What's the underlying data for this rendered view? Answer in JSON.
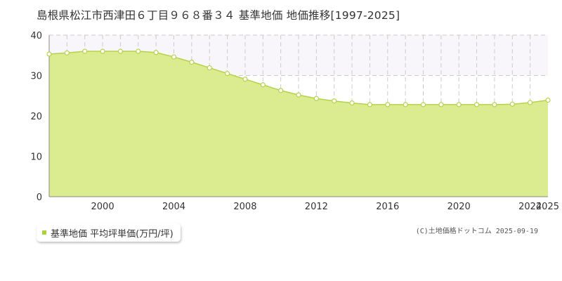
{
  "colors": {
    "fill": "#dbeb8f",
    "stroke": "#b5d24a",
    "band": "#f8f6fa",
    "point": "#ffffff",
    "legend_swatch": "#a8d13c"
  },
  "chart_data": {
    "type": "area",
    "title": "島根県松江市西津田６丁目９６８番３４ 基準地価 地価推移[1997-2025]",
    "x": [
      1997,
      1998,
      1999,
      2000,
      2001,
      2002,
      2003,
      2004,
      2005,
      2006,
      2007,
      2008,
      2009,
      2010,
      2011,
      2012,
      2013,
      2014,
      2015,
      2016,
      2017,
      2018,
      2019,
      2020,
      2021,
      2022,
      2023,
      2024,
      2025
    ],
    "series": [
      {
        "name": "基準地価 平均坪単価(万円/坪)",
        "values": [
          35.3,
          35.6,
          36.0,
          36.0,
          36.0,
          36.0,
          35.7,
          34.6,
          33.3,
          31.9,
          30.5,
          29.1,
          27.7,
          26.3,
          25.2,
          24.3,
          23.7,
          23.2,
          22.8,
          22.8,
          22.8,
          22.8,
          22.8,
          22.8,
          22.8,
          22.8,
          22.9,
          23.3,
          23.9
        ]
      }
    ],
    "xlim": [
      1997,
      2025
    ],
    "ylim": [
      0,
      40
    ],
    "x_ticks": [
      "2000",
      "2004",
      "2008",
      "2012",
      "2016",
      "2020",
      "2024",
      "2025"
    ],
    "y_ticks": [
      "0",
      "10",
      "20",
      "30",
      "40"
    ],
    "grid": true,
    "legend_position": "bottom-left"
  },
  "legend": {
    "label": "基準地価 平均坪単価(万円/坪)"
  },
  "credit": "(C)土地価格ドットコム 2025-09-19"
}
